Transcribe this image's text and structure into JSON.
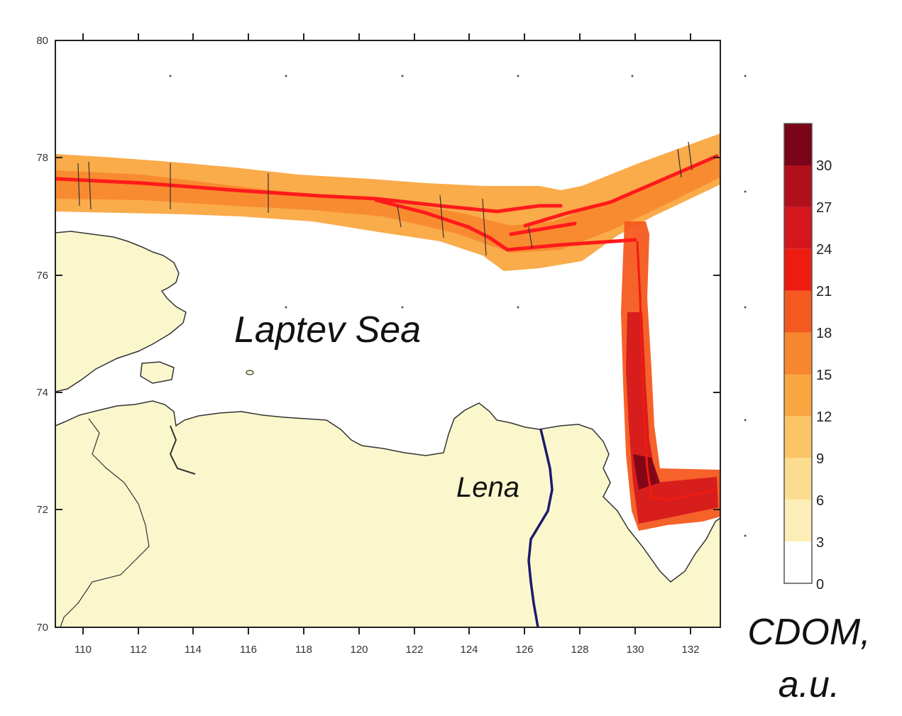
{
  "map": {
    "sea_label": "Laptev Sea",
    "river_label": "Lena",
    "x_ticks": [
      "110",
      "112",
      "114",
      "116",
      "118",
      "120",
      "122",
      "124",
      "126",
      "128",
      "130",
      "132"
    ],
    "y_ticks": [
      "80",
      "78",
      "76",
      "74",
      "72",
      "70"
    ],
    "colors": {
      "land": "#fbf7cc",
      "coastline": "#333333",
      "river": "#1a1a6e",
      "track_line": "#ff1a1a"
    }
  },
  "colorbar": {
    "title_line1": "CDOM,",
    "title_line2": "a.u.",
    "labels": [
      "30",
      "27",
      "24",
      "21",
      "18",
      "15",
      "12",
      "9",
      "6",
      "3",
      "0"
    ],
    "bins": [
      {
        "range": "0-3",
        "color": "#ffffff"
      },
      {
        "range": "3-6",
        "color": "#fdeeb8"
      },
      {
        "range": "6-9",
        "color": "#fcdc8f"
      },
      {
        "range": "9-12",
        "color": "#fbc466"
      },
      {
        "range": "12-15",
        "color": "#faa640"
      },
      {
        "range": "15-18",
        "color": "#f7872e"
      },
      {
        "range": "18-21",
        "color": "#f45a1f"
      },
      {
        "range": "21-24",
        "color": "#ee1c10"
      },
      {
        "range": "24-27",
        "color": "#d5161c"
      },
      {
        "range": "27-30",
        "color": "#b20f1c"
      },
      {
        "range": "30+",
        "color": "#7a0418"
      }
    ]
  }
}
